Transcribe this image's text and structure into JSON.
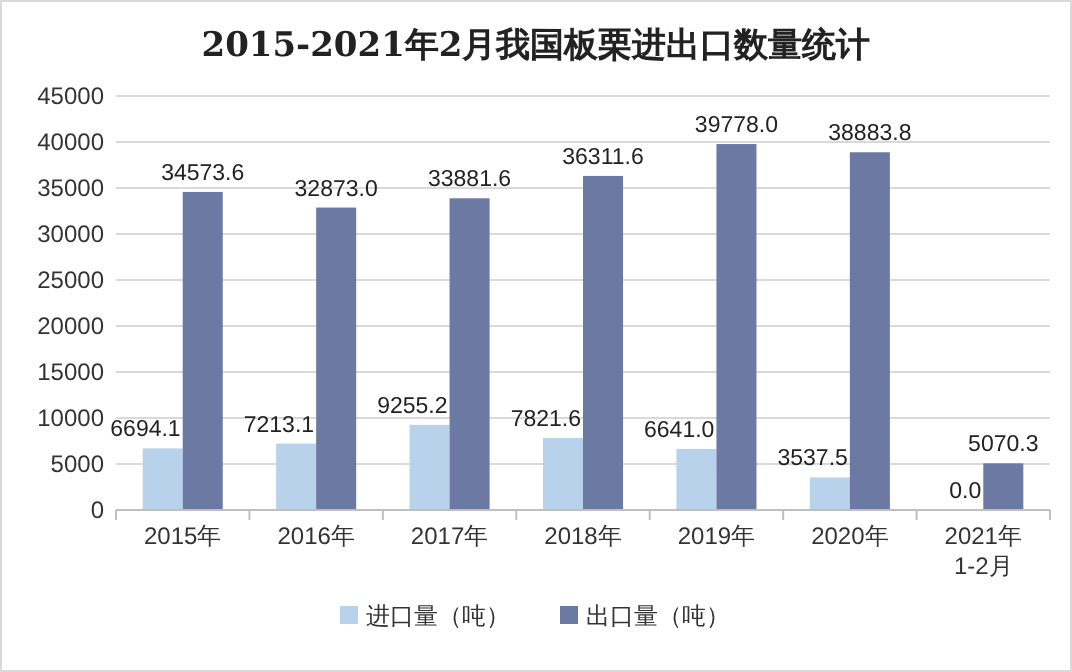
{
  "chart_data": {
    "type": "bar",
    "title": "2015-2021年2月我国板栗进出口数量统计",
    "categories": [
      "2015年",
      "2016年",
      "2017年",
      "2018年",
      "2019年",
      "2020年",
      "2021年\n1-2月"
    ],
    "series": [
      {
        "name": "进口量（吨）",
        "color": "#b8d2ec",
        "values": [
          6694.1,
          7213.1,
          9255.2,
          7821.6,
          6641.0,
          3537.5,
          0.0
        ],
        "value_labels": [
          "6694.1",
          "7213.1",
          "9255.2",
          "7821.6",
          "6641.0",
          "3537.5",
          "0.0"
        ]
      },
      {
        "name": "出口量（吨）",
        "color": "#6c7aa3",
        "values": [
          34573.6,
          32873.0,
          33881.6,
          36311.6,
          39778.0,
          38883.8,
          5070.3
        ],
        "value_labels": [
          "34573.6",
          "32873.0",
          "33881.6",
          "36311.6",
          "39778.0",
          "38883.8",
          "5070.3"
        ]
      }
    ],
    "ylim": [
      0,
      45000
    ],
    "yticks": [
      0,
      5000,
      10000,
      15000,
      20000,
      25000,
      30000,
      35000,
      40000,
      45000
    ],
    "grid": "y",
    "legend": "bottom"
  }
}
